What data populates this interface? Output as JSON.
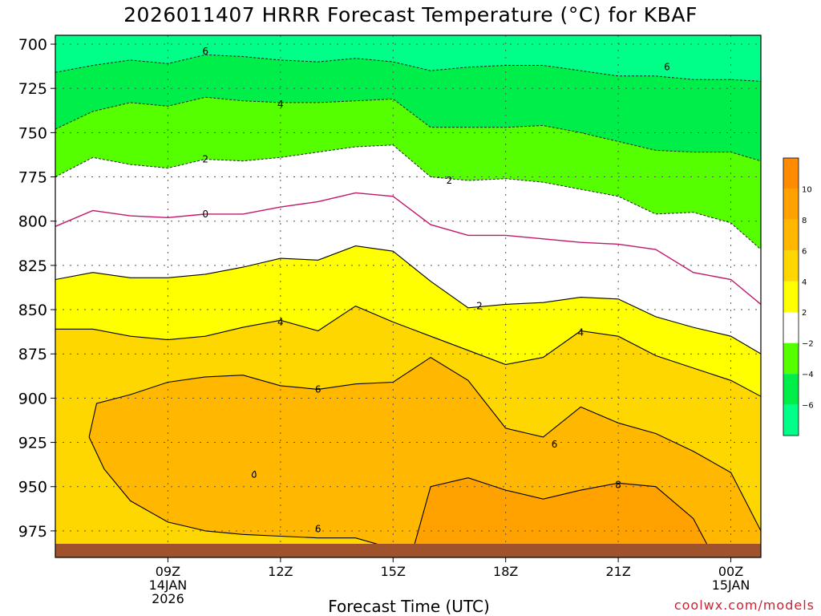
{
  "chart_data": {
    "type": "contour",
    "title": "2026011407 HRRR Forecast Temperature (°C) for KBAF",
    "xlabel": "Forecast Time (UTC)",
    "ylabel": "",
    "y_axis": "pressure (hPa), inverted",
    "ylim": [
      990,
      695
    ],
    "yticks": [
      "700",
      "725",
      "750",
      "775",
      "800",
      "825",
      "850",
      "875",
      "900",
      "925",
      "950",
      "975"
    ],
    "x_range_hours": [
      6,
      24.8
    ],
    "xticks": [
      {
        "hour": 9,
        "lines": [
          "09Z",
          "14JAN",
          "2026"
        ]
      },
      {
        "hour": 12,
        "lines": [
          "12Z"
        ]
      },
      {
        "hour": 15,
        "lines": [
          "15Z"
        ]
      },
      {
        "hour": 18,
        "lines": [
          "18Z"
        ]
      },
      {
        "hour": 21,
        "lines": [
          "21Z"
        ]
      },
      {
        "hour": 24,
        "lines": [
          "00Z",
          "15JAN"
        ]
      }
    ],
    "grid": true,
    "contour_levels": [
      -6,
      -4,
      -2,
      0,
      2,
      4,
      6,
      8
    ],
    "contours": [
      {
        "level": -6,
        "style": "dashed",
        "points": [
          [
            6,
            716
          ],
          [
            7,
            712
          ],
          [
            8,
            709
          ],
          [
            9,
            711
          ],
          [
            10,
            706
          ],
          [
            11,
            707
          ],
          [
            12,
            709
          ],
          [
            13,
            710
          ],
          [
            14,
            708
          ],
          [
            15,
            710
          ],
          [
            16,
            715
          ],
          [
            17,
            713
          ],
          [
            18,
            712
          ],
          [
            19,
            712
          ],
          [
            20,
            715
          ],
          [
            21,
            718
          ],
          [
            22,
            718
          ],
          [
            23,
            720
          ],
          [
            24,
            720
          ],
          [
            24.8,
            721
          ]
        ]
      },
      {
        "level": -4,
        "style": "dashed",
        "points": [
          [
            6,
            748
          ],
          [
            7,
            738
          ],
          [
            8,
            733
          ],
          [
            9,
            735
          ],
          [
            10,
            730
          ],
          [
            11,
            732
          ],
          [
            12,
            733
          ],
          [
            13,
            733
          ],
          [
            14,
            732
          ],
          [
            15,
            731
          ],
          [
            16,
            747
          ],
          [
            17,
            747
          ],
          [
            18,
            747
          ],
          [
            19,
            746
          ],
          [
            20,
            750
          ],
          [
            21,
            755
          ],
          [
            22,
            760
          ],
          [
            23,
            761
          ],
          [
            24,
            761
          ],
          [
            24.8,
            766
          ]
        ]
      },
      {
        "level": -2,
        "style": "dashed",
        "points": [
          [
            6,
            775
          ],
          [
            7,
            764
          ],
          [
            8,
            768
          ],
          [
            9,
            770
          ],
          [
            10,
            765
          ],
          [
            11,
            766
          ],
          [
            12,
            764
          ],
          [
            13,
            761
          ],
          [
            14,
            758
          ],
          [
            15,
            757
          ],
          [
            16,
            775
          ],
          [
            17,
            777
          ],
          [
            18,
            776
          ],
          [
            19,
            778
          ],
          [
            20,
            782
          ],
          [
            21,
            786
          ],
          [
            22,
            796
          ],
          [
            23,
            795
          ],
          [
            24,
            801
          ],
          [
            24.8,
            816
          ]
        ]
      },
      {
        "level": 0,
        "style": "magenta",
        "points": [
          [
            6,
            803
          ],
          [
            7,
            794
          ],
          [
            8,
            797
          ],
          [
            9,
            798
          ],
          [
            10,
            796
          ],
          [
            11,
            796
          ],
          [
            12,
            792
          ],
          [
            13,
            789
          ],
          [
            14,
            784
          ],
          [
            15,
            786
          ],
          [
            16,
            802
          ],
          [
            17,
            808
          ],
          [
            18,
            808
          ],
          [
            19,
            810
          ],
          [
            20,
            812
          ],
          [
            21,
            813
          ],
          [
            22,
            816
          ],
          [
            23,
            829
          ],
          [
            24,
            833
          ],
          [
            24.8,
            847
          ]
        ]
      },
      {
        "level": 2,
        "style": "solid",
        "points": [
          [
            6,
            833
          ],
          [
            7,
            829
          ],
          [
            8,
            832
          ],
          [
            9,
            832
          ],
          [
            10,
            830
          ],
          [
            11,
            826
          ],
          [
            12,
            821
          ],
          [
            13,
            822
          ],
          [
            14,
            814
          ],
          [
            15,
            817
          ],
          [
            16,
            834
          ],
          [
            17,
            849
          ],
          [
            18,
            847
          ],
          [
            19,
            846
          ],
          [
            20,
            843
          ],
          [
            21,
            844
          ],
          [
            22,
            854
          ],
          [
            23,
            860
          ],
          [
            24,
            865
          ],
          [
            24.8,
            875
          ]
        ]
      },
      {
        "level": 4,
        "style": "solid",
        "points": [
          [
            6,
            861
          ],
          [
            7,
            861
          ],
          [
            8,
            865
          ],
          [
            9,
            867
          ],
          [
            10,
            865
          ],
          [
            11,
            860
          ],
          [
            12,
            856
          ],
          [
            13,
            862
          ],
          [
            14,
            848
          ],
          [
            15,
            857
          ],
          [
            16,
            865
          ],
          [
            17,
            873
          ],
          [
            18,
            881
          ],
          [
            19,
            877
          ],
          [
            20,
            862
          ],
          [
            21,
            865
          ],
          [
            22,
            876
          ],
          [
            23,
            883
          ],
          [
            24,
            890
          ],
          [
            24.8,
            899
          ]
        ]
      },
      {
        "level": 6,
        "style": "solid",
        "points": [
          [
            6.9,
            922
          ],
          [
            7.1,
            903
          ],
          [
            8,
            898
          ],
          [
            9,
            891
          ],
          [
            10,
            888
          ],
          [
            11,
            887
          ],
          [
            12,
            893
          ],
          [
            13,
            895
          ],
          [
            14,
            892
          ],
          [
            15,
            891
          ],
          [
            16,
            877
          ],
          [
            17,
            890
          ],
          [
            18,
            917
          ],
          [
            19,
            922
          ],
          [
            20,
            905
          ],
          [
            21,
            914
          ],
          [
            22,
            920
          ],
          [
            23,
            930
          ],
          [
            24,
            942
          ],
          [
            24.8,
            975
          ],
          [
            24.8,
            988
          ],
          [
            24.0,
            988
          ]
        ]
      },
      {
        "level": 6,
        "style": "solid",
        "points": [
          [
            6.9,
            922
          ],
          [
            7.3,
            940
          ],
          [
            8,
            958
          ],
          [
            9,
            970
          ],
          [
            10,
            975
          ],
          [
            11,
            977
          ],
          [
            12,
            978
          ],
          [
            13,
            979
          ],
          [
            14,
            979
          ],
          [
            15,
            985
          ],
          [
            15.1,
            989
          ]
        ]
      },
      {
        "level": 8,
        "style": "solid",
        "points": [
          [
            15.5,
            988
          ],
          [
            16,
            950
          ],
          [
            17,
            945
          ],
          [
            18,
            952
          ],
          [
            19,
            957
          ],
          [
            20,
            952
          ],
          [
            21,
            948
          ],
          [
            22,
            950
          ],
          [
            23,
            968
          ],
          [
            23.4,
            984
          ]
        ]
      }
    ]
  },
  "colorbar": {
    "stops": [
      {
        "label": "10",
        "color": "#ff8c00"
      },
      {
        "label": "8",
        "color": "#ffa200"
      },
      {
        "label": "6",
        "color": "#ffb700"
      },
      {
        "label": "4",
        "color": "#ffd700"
      },
      {
        "label": "2",
        "color": "#ffff00"
      },
      {
        "label": "−2",
        "color": "#ffffff"
      },
      {
        "label": "−4",
        "color": "#55ff00"
      },
      {
        "label": "−6",
        "color": "#00ee4a"
      },
      {
        "label": "",
        "color": "#00ff88"
      }
    ]
  },
  "credit": "coolwx.com/models"
}
